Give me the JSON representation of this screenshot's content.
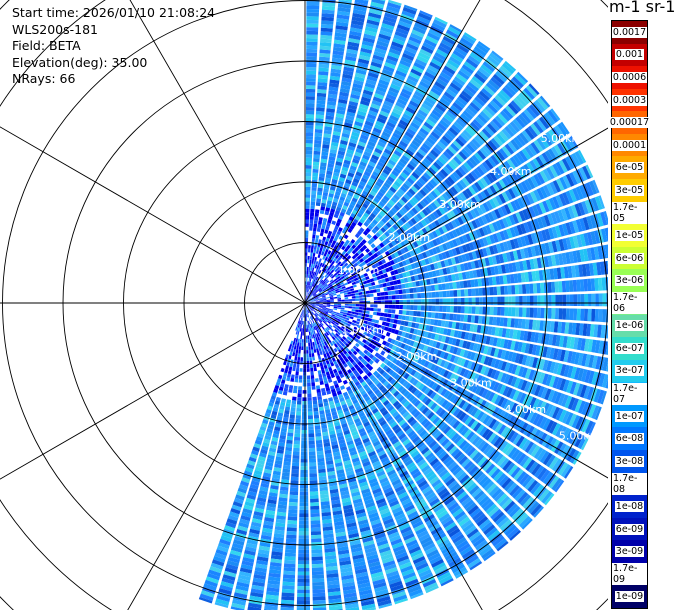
{
  "header": {
    "start_time": "Start time: 2026/01/10 21:08:24",
    "instrument": "WLS200s-181",
    "field": "Field: BETA",
    "elevation": "Elevation(deg): 35.00",
    "nrays": "NRays: 66"
  },
  "colorbar": {
    "title": "m-1 sr-1",
    "labels": [
      "0.0017",
      "0.001",
      "0.0006",
      "0.0003",
      "0.00017",
      "0.0001",
      "6e-05",
      "3e-05",
      "1.7e-05",
      "1e-05",
      "6e-06",
      "3e-06",
      "1.7e-06",
      "1e-06",
      "6e-07",
      "3e-07",
      "1.7e-07",
      "1e-07",
      "6e-08",
      "3e-08",
      "1.7e-08",
      "1e-08",
      "6e-09",
      "3e-09",
      "1.7e-09",
      "1e-09"
    ],
    "colors": [
      "#8b0000",
      "#c40000",
      "#ee1100",
      "#ff3300",
      "#ff6600",
      "#ff8800",
      "#ffaa00",
      "#ffcc00",
      "#ffee33",
      "#f2ff33",
      "#ccff33",
      "#99ff55",
      "#77ee88",
      "#66ddaa",
      "#33ddcc",
      "#22ccee",
      "#11bbff",
      "#0099ff",
      "#0077ff",
      "#0055ee",
      "#0033dd",
      "#0022cc",
      "#0011bb",
      "#0000aa",
      "#000099",
      "#000066"
    ]
  },
  "chart_data": {
    "type": "heatmap",
    "subtype": "ppi-sector",
    "title": "",
    "field": "BETA",
    "units": "m-1 sr-1",
    "elevation_deg": 35.0,
    "nrays": 66,
    "azimuth_range_deg": [
      0,
      200
    ],
    "max_range_km": 5.2,
    "range_rings_km": [
      1.0,
      2.0,
      3.0,
      4.0,
      5.0
    ],
    "ring_labels": [
      "1.00km",
      "2.00km",
      "3.00km",
      "4.00km",
      "5.00km"
    ],
    "spokes_deg": [
      0,
      30,
      60,
      90,
      120,
      150,
      180,
      210,
      240,
      270,
      300,
      330
    ],
    "dominant_value_range": [
      1e-07,
      3e-08
    ],
    "grid": true
  }
}
